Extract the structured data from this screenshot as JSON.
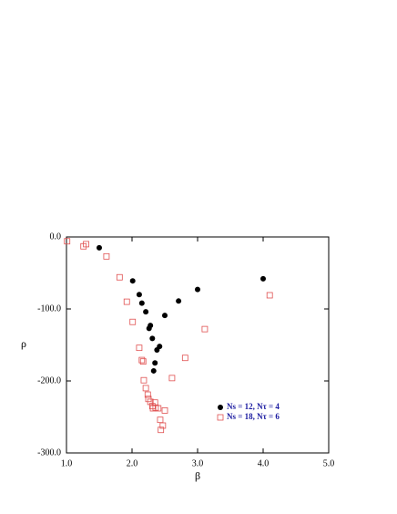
{
  "chart_data": {
    "type": "scatter",
    "x_label": "β",
    "y_label": "ρ",
    "xlim": [
      1.0,
      5.0
    ],
    "ylim": [
      -300,
      0
    ],
    "xticks": [
      {
        "value": 1,
        "label": "1.0"
      },
      {
        "value": 2,
        "label": "2.0"
      },
      {
        "value": 3,
        "label": "3.0"
      },
      {
        "value": 4,
        "label": "4.0"
      },
      {
        "value": 5,
        "label": "5.0"
      }
    ],
    "yticks": [
      {
        "value": -300,
        "label": "-300.0"
      },
      {
        "value": -200,
        "label": "-200.0"
      },
      {
        "value": -100,
        "label": "-100.0"
      },
      {
        "value": 0,
        "label": "0.0"
      }
    ],
    "legend": "lower right",
    "series": [
      {
        "name": "Ns = 12, Nτ = 4",
        "color": "#000000",
        "marker": "circle",
        "x": [
          1.5,
          2.01,
          2.11,
          2.15,
          2.21,
          2.26,
          2.28,
          2.31,
          2.38,
          2.42,
          2.35,
          2.33,
          2.5,
          2.71,
          3.0,
          4.0
        ],
        "values": [
          -15,
          -61,
          -80,
          -92,
          -104,
          -127,
          -123,
          -141,
          -157,
          -152,
          -175,
          -186,
          -109,
          -89,
          -73,
          -58
        ]
      },
      {
        "name": "Ns = 18, Nτ = 6",
        "color": "#e05050",
        "marker": "square",
        "x": [
          1.01,
          1.26,
          1.3,
          1.61,
          1.81,
          1.92,
          2.01,
          2.11,
          2.15,
          2.17,
          2.18,
          2.21,
          2.24,
          2.25,
          2.28,
          2.31,
          2.32,
          2.36,
          2.35,
          2.4,
          2.43,
          2.44,
          2.47,
          2.5,
          2.61,
          2.81,
          3.11,
          4.1
        ],
        "values": [
          -6,
          -13,
          -10,
          -27,
          -56,
          -90,
          -118,
          -154,
          -171,
          -173,
          -199,
          -210,
          -219,
          -225,
          -229,
          -235,
          -238,
          -237,
          -230,
          -238,
          -254,
          -268,
          -262,
          -241,
          -196,
          -168,
          -128,
          -81
        ]
      }
    ]
  }
}
